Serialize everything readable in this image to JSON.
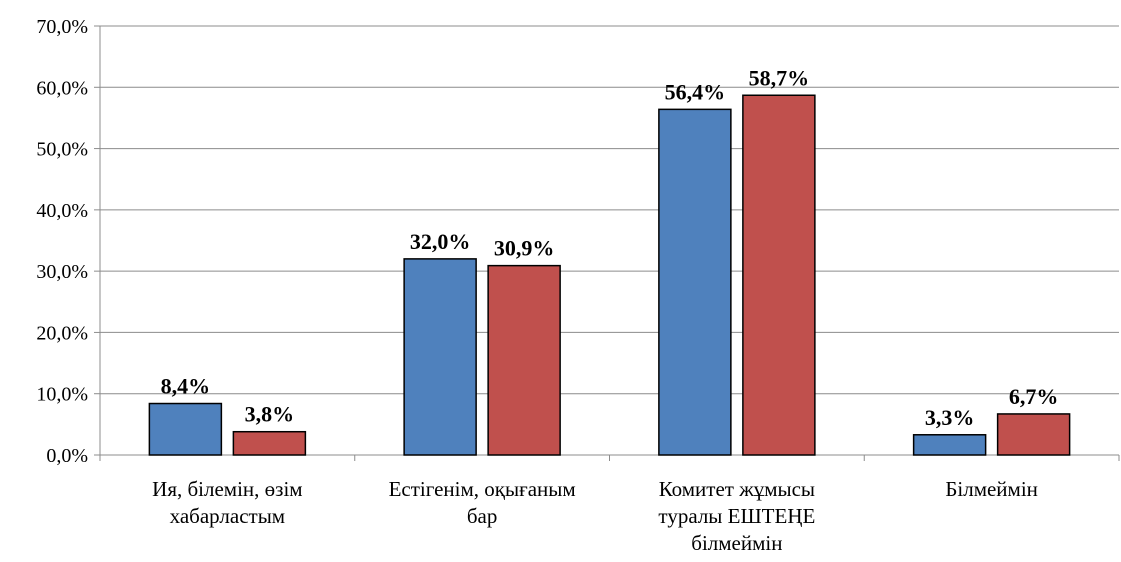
{
  "chart_data": {
    "type": "bar",
    "categories": [
      [
        "Ия, білемін, өзім",
        "хабарластым"
      ],
      [
        "Естігенім, оқығаным",
        "бар"
      ],
      [
        "Комитет жұмысы",
        "туралы ЕШТЕҢЕ",
        "білмеймін"
      ],
      [
        "Білмеймін"
      ]
    ],
    "series": [
      {
        "values": [
          8.4,
          32.0,
          56.4,
          3.3
        ],
        "labels": [
          "8,4%",
          "32,0%",
          "56,4%",
          "3,3%"
        ],
        "color": "#4F81BD"
      },
      {
        "values": [
          3.8,
          30.9,
          58.7,
          6.7
        ],
        "labels": [
          "3,8%",
          "30,9%",
          "58,7%",
          "6,7%"
        ],
        "color": "#C0504D"
      }
    ],
    "y_ticks": [
      "0,0%",
      "10,0%",
      "20,0%",
      "30,0%",
      "40,0%",
      "50,0%",
      "60,0%",
      "70,0%"
    ],
    "ylim": [
      0,
      70
    ],
    "grid": true,
    "legend": "none",
    "title": "",
    "xlabel": "",
    "ylabel": ""
  }
}
